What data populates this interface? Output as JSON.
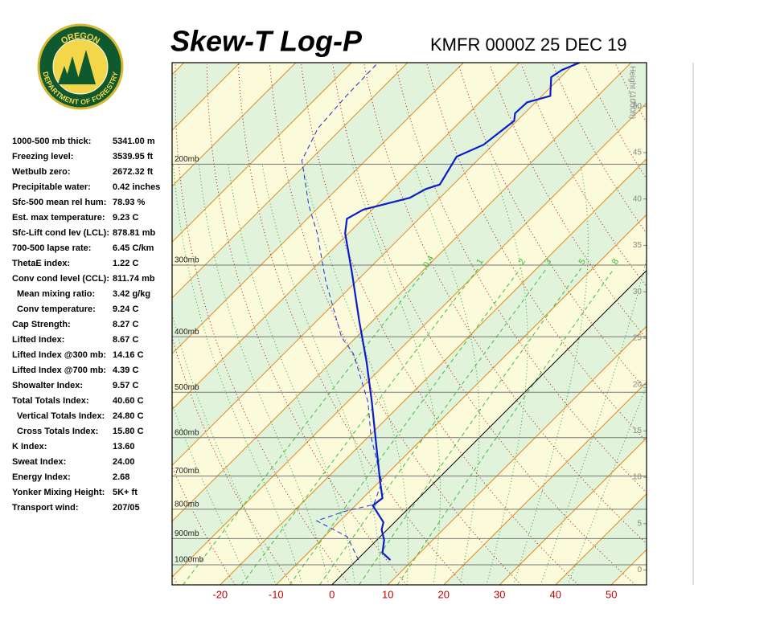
{
  "logo": {
    "top": "OREGON",
    "bottom": "DEPARTMENT OF FORESTRY"
  },
  "indices": [
    {
      "label": "1000-500 mb thick:",
      "value": "5341.00 m"
    },
    {
      "label": "Freezing level:",
      "value": "3539.95 ft"
    },
    {
      "label": "Wetbulb zero:",
      "value": "2672.32 ft"
    },
    {
      "label": "Precipitable water:",
      "value": "0.42 inches"
    },
    {
      "label": "Sfc-500 mean rel hum:",
      "value": "78.93 %"
    },
    {
      "label": "Est. max temperature:",
      "value": "9.23 C"
    },
    {
      "label": "Sfc-Lift cond lev (LCL):",
      "value": "878.81 mb"
    },
    {
      "label": "700-500 lapse rate:",
      "value": "6.45 C/km"
    },
    {
      "label": "ThetaE index:",
      "value": "1.22 C"
    },
    {
      "label": "Conv cond level (CCL):",
      "value": "811.74 mb"
    },
    {
      "label": "Mean mixing ratio:",
      "value": "3.42 g/kg",
      "sub": true
    },
    {
      "label": "Conv temperature:",
      "value": "9.24 C",
      "sub": true
    },
    {
      "label": "Cap Strength:",
      "value": "8.27 C"
    },
    {
      "label": "Lifted Index:",
      "value": "8.67 C"
    },
    {
      "label": "Lifted Index @300 mb:",
      "value": "14.16 C"
    },
    {
      "label": "Lifted Index @700 mb:",
      "value": "4.39 C"
    },
    {
      "label": "Showalter Index:",
      "value": "9.57 C"
    },
    {
      "label": "Total Totals Index:",
      "value": "40.60 C"
    },
    {
      "label": "Vertical Totals Index:",
      "value": "24.80 C",
      "sub": true
    },
    {
      "label": "Cross Totals Index:",
      "value": "15.80 C",
      "sub": true
    },
    {
      "label": "K Index:",
      "value": "13.60"
    },
    {
      "label": "Sweat Index:",
      "value": "24.00"
    },
    {
      "label": "Energy Index:",
      "value": "2.68"
    },
    {
      "label": "Yonker Mixing Height:",
      "value": "5K+ ft"
    },
    {
      "label": "Transport wind:",
      "value": "207/05"
    }
  ],
  "chart_data": {
    "type": "skew-t",
    "title": "Skew-T Log-P",
    "subtitle": "KMFR 0000Z 25 DEC 19",
    "y2_label": "Height (1000ft)",
    "xlim": [
      -28.6,
      56.3
    ],
    "xticks": [
      -20,
      -10,
      0,
      10,
      20,
      30,
      40,
      50
    ],
    "ylim": [
      1084,
      133
    ],
    "log_y": true,
    "yticks": [
      {
        "value": 200,
        "label": "200mb"
      },
      {
        "value": 300,
        "label": "300mb"
      },
      {
        "value": 400,
        "label": "400mb"
      },
      {
        "value": 500,
        "label": "500mb"
      },
      {
        "value": 600,
        "label": "600mb"
      },
      {
        "value": 700,
        "label": "700mb"
      },
      {
        "value": 800,
        "label": "800mb"
      },
      {
        "value": 900,
        "label": "900mb"
      },
      {
        "value": 1000,
        "label": "1000mb"
      }
    ],
    "y2lim": [
      -1.6,
      54.7
    ],
    "y2ticks": [
      0,
      5,
      10,
      15,
      20,
      25,
      30,
      35,
      40,
      45,
      50
    ],
    "mixing_ratios": [
      0.4,
      1,
      2,
      3,
      5,
      8
    ],
    "series": [
      {
        "color": "#0a1ec8",
        "dash": false,
        "pressure": [
          981,
          953,
          905,
          868,
          843,
          788,
          765,
          717,
          607,
          520,
          442,
          376,
          310,
          264,
          249,
          240,
          229,
          221,
          217,
          194,
          185,
          168,
          163,
          156,
          152,
          141,
          137,
          133
        ],
        "values": [
          6.0,
          3.3,
          1.3,
          -1.0,
          -2.0,
          -6.9,
          -6.5,
          -9.8,
          -18.0,
          -25.6,
          -33.8,
          -42.3,
          -52.2,
          -60.6,
          -62.9,
          -61.6,
          -55.4,
          -54.1,
          -52.4,
          -54.4,
          -51.7,
          -50.5,
          -51.7,
          -51.5,
          -48.5,
          -51.7,
          -51.1,
          -49.2
        ]
      },
      {
        "color": "#1e2ed0",
        "dash": true,
        "pressure": [
          981,
          893,
          838,
          806,
          785,
          717,
          597,
          520,
          428,
          401,
          320,
          264,
          236,
          197,
          173,
          152,
          133
        ],
        "values": [
          0.3,
          -5.9,
          -14.2,
          -10.8,
          -6.9,
          -9.5,
          -19.6,
          -26.3,
          -37.6,
          -42.6,
          -55.5,
          -65.6,
          -72.1,
          -81.4,
          -84.3,
          -85.0,
          -85.3
        ]
      }
    ]
  }
}
